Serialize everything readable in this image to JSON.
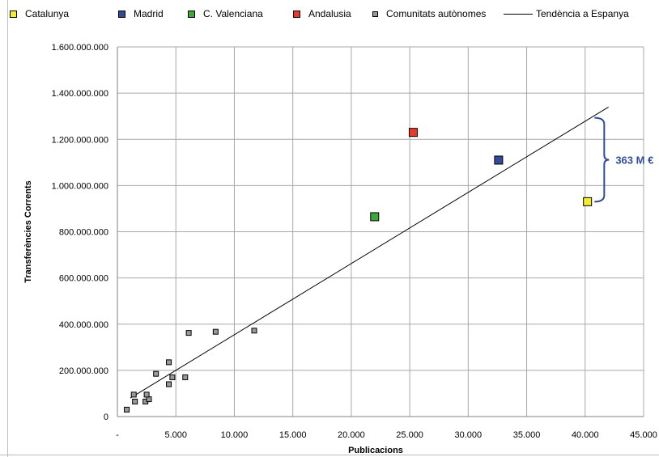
{
  "chart_data": {
    "type": "scatter",
    "xlabel": "Publicacions",
    "ylabel": "Transferències Corrents",
    "xlim": [
      0,
      45000
    ],
    "ylim": [
      0,
      1600000000
    ],
    "x_ticks": [
      0,
      5000,
      10000,
      15000,
      20000,
      25000,
      30000,
      35000,
      40000,
      45000
    ],
    "x_tick_labels": [
      "-",
      "5.000",
      "10.000",
      "15.000",
      "20.000",
      "25.000",
      "30.000",
      "35.000",
      "40.000",
      "45.000"
    ],
    "y_ticks": [
      0,
      200000000,
      400000000,
      600000000,
      800000000,
      1000000000,
      1200000000,
      1400000000,
      1600000000
    ],
    "y_tick_labels": [
      "0",
      "200.000.000",
      "400.000.000",
      "600.000.000",
      "800.000.000",
      "1.000.000.000",
      "1.200.000.000",
      "1.400.000.000",
      "1.600.000.000"
    ],
    "grid": true,
    "legend_position": "top",
    "series": [
      {
        "name": "Catalunya",
        "color": "#f2ee2b",
        "marker": "square-large",
        "points": [
          [
            40200,
            930000000
          ]
        ]
      },
      {
        "name": "Madrid",
        "color": "#2f4d9a",
        "marker": "square-large",
        "points": [
          [
            32600,
            1110000000
          ]
        ]
      },
      {
        "name": "C. Valenciana",
        "color": "#3fa83c",
        "marker": "square-large",
        "points": [
          [
            22000,
            865000000
          ]
        ]
      },
      {
        "name": "Andalusia",
        "color": "#e8392b",
        "marker": "square-large",
        "points": [
          [
            25300,
            1230000000
          ]
        ]
      },
      {
        "name": "Comunitats autònomes",
        "color": "#9a9a9a",
        "marker": "square-small",
        "points": [
          [
            800,
            30000000
          ],
          [
            1500,
            65000000
          ],
          [
            1400,
            95000000
          ],
          [
            2400,
            65000000
          ],
          [
            2700,
            75000000
          ],
          [
            2500,
            95000000
          ],
          [
            3300,
            185000000
          ],
          [
            4400,
            140000000
          ],
          [
            4400,
            235000000
          ],
          [
            4700,
            170000000
          ],
          [
            5800,
            170000000
          ],
          [
            6100,
            362000000
          ],
          [
            8400,
            367000000
          ],
          [
            11700,
            372000000
          ]
        ]
      },
      {
        "name": "Tendència a Espanya",
        "type": "line",
        "color": "#000000",
        "points": [
          [
            1100,
            80000000
          ],
          [
            42000,
            1340000000
          ]
        ]
      }
    ],
    "annotation": {
      "label": "363 M €",
      "x": 40800,
      "y_from": 930000000,
      "y_to": 1293000000,
      "color": "#2f4d9a"
    }
  }
}
